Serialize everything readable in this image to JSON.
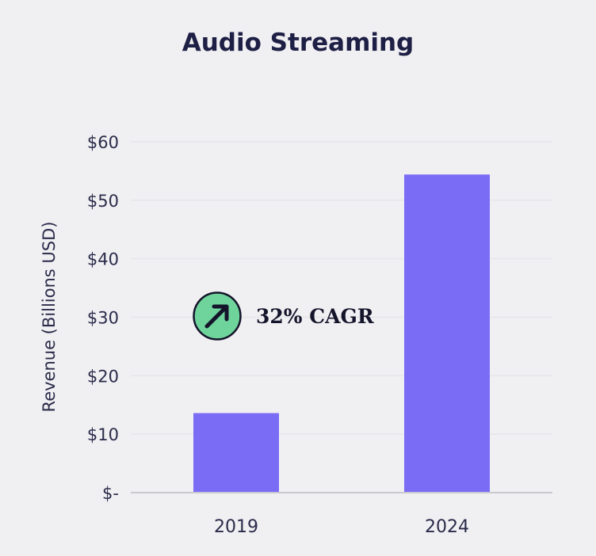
{
  "chart_data": {
    "type": "bar",
    "title": "Audio Streaming",
    "xlabel": "",
    "ylabel": "Revenue (Billions USD)",
    "categories": [
      "2019",
      "2024"
    ],
    "values": [
      13.6,
      54.4
    ],
    "ylim": [
      0,
      60
    ],
    "yticks": [
      0,
      10,
      20,
      30,
      40,
      50,
      60
    ],
    "ytick_labels": [
      "$-",
      "$10",
      "$20",
      "$30",
      "$40",
      "$50",
      "$60"
    ],
    "grid": true,
    "bar_color": "#7b6cf6",
    "annotation": {
      "text": "32% CAGR",
      "icon": "arrow-up-right-icon",
      "icon_color": "#6fd49b"
    }
  }
}
